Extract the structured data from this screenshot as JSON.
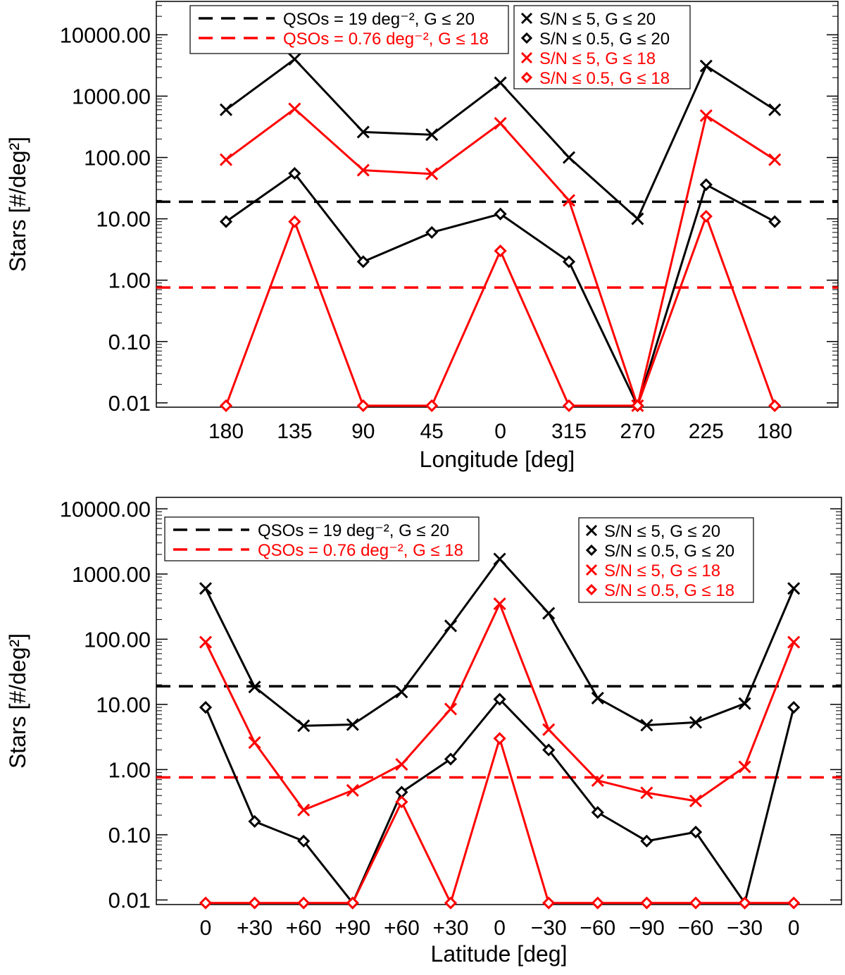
{
  "chart_data": [
    {
      "type": "line",
      "title": "",
      "xlabel": "Longitude [deg]",
      "ylabel": "Stars [#/deg²]",
      "yscale": "log",
      "ylim": [
        0.0085,
        35000
      ],
      "categories": [
        "180",
        "135",
        "90",
        "45",
        "0",
        "315",
        "270",
        "225",
        "180"
      ],
      "yticks": [
        "0.01",
        "0.10",
        "1.00",
        "10.00",
        "100.00",
        "1000.00",
        "10000.00"
      ],
      "yticks_values": [
        0.01,
        0.1,
        1,
        10,
        100,
        1000,
        10000
      ],
      "grid": false,
      "series": [
        {
          "name": "S/N ≤ 5,    G ≤ 20",
          "marker": "cross",
          "color": "#000000",
          "values": [
            600,
            4000,
            260,
            235,
            1650,
            100,
            10,
            3100,
            600
          ]
        },
        {
          "name": "S/N ≤ 0.5, G ≤ 20",
          "marker": "diamond",
          "color": "#000000",
          "values": [
            9,
            55,
            2,
            6,
            12,
            2,
            0.009,
            36,
            9
          ]
        },
        {
          "name": "S/N ≤ 5,    G ≤ 18",
          "marker": "cross",
          "color": "#ff0000",
          "values": [
            92,
            620,
            62,
            54,
            360,
            20,
            0.009,
            480,
            92
          ]
        },
        {
          "name": "S/N ≤ 0.5, G ≤ 18",
          "marker": "diamond",
          "color": "#ff0000",
          "values": [
            0.009,
            9,
            0.009,
            0.009,
            3,
            0.009,
            0.009,
            11,
            0.009
          ]
        }
      ],
      "hlines": [
        {
          "name": "QSOs = 19 deg⁻²,    G ≤ 20",
          "value": 19,
          "color": "#000000"
        },
        {
          "name": "QSOs = 0.76 deg⁻², G ≤ 18",
          "value": 0.76,
          "color": "#ff0000"
        }
      ],
      "legends": {
        "lines_position": "top-left",
        "series_position": "top-center"
      }
    },
    {
      "type": "line",
      "title": "",
      "xlabel": "Latitude [deg]",
      "ylabel": "Stars [#/deg²]",
      "yscale": "log",
      "ylim": [
        0.0085,
        15000
      ],
      "categories": [
        "0",
        "+30",
        "+60",
        "+90",
        "+60",
        "+30",
        "0",
        "−30",
        "−60",
        "−90",
        "−60",
        "−30",
        "0"
      ],
      "yticks": [
        "0.01",
        "0.10",
        "1.00",
        "10.00",
        "100.00",
        "1000.00",
        "10000.00"
      ],
      "yticks_values": [
        0.01,
        0.1,
        1,
        10,
        100,
        1000,
        10000
      ],
      "grid": false,
      "series": [
        {
          "name": "S/N ≤ 5,    G ≤ 20",
          "marker": "cross",
          "color": "#000000",
          "values": [
            600,
            18.5,
            4.7,
            4.9,
            15.5,
            160,
            1700,
            250,
            12.5,
            4.8,
            5.3,
            10.3,
            600
          ]
        },
        {
          "name": "S/N ≤ 0.5, G ≤ 20",
          "marker": "diamond",
          "color": "#000000",
          "values": [
            9,
            0.16,
            0.08,
            0.009,
            0.45,
            1.45,
            12,
            2,
            0.22,
            0.08,
            0.11,
            0.009,
            9
          ]
        },
        {
          "name": "S/N ≤ 5,    G ≤ 18",
          "marker": "cross",
          "color": "#ff0000",
          "values": [
            90,
            2.6,
            0.24,
            0.48,
            1.2,
            8.5,
            350,
            4.1,
            0.68,
            0.44,
            0.33,
            1.1,
            90
          ]
        },
        {
          "name": "S/N ≤ 0.5, G ≤ 18",
          "marker": "diamond",
          "color": "#ff0000",
          "values": [
            0.009,
            0.009,
            0.009,
            0.009,
            0.32,
            0.009,
            3,
            0.009,
            0.009,
            0.009,
            0.009,
            0.009,
            0.009
          ]
        }
      ],
      "hlines": [
        {
          "name": "QSOs = 19 deg⁻²,    G ≤ 20",
          "value": 19,
          "color": "#000000"
        },
        {
          "name": "QSOs = 0.76 deg⁻², G ≤ 18",
          "value": 0.76,
          "color": "#ff0000"
        }
      ],
      "legends": {
        "lines_position": "top-left",
        "series_position": "top-right"
      }
    }
  ]
}
